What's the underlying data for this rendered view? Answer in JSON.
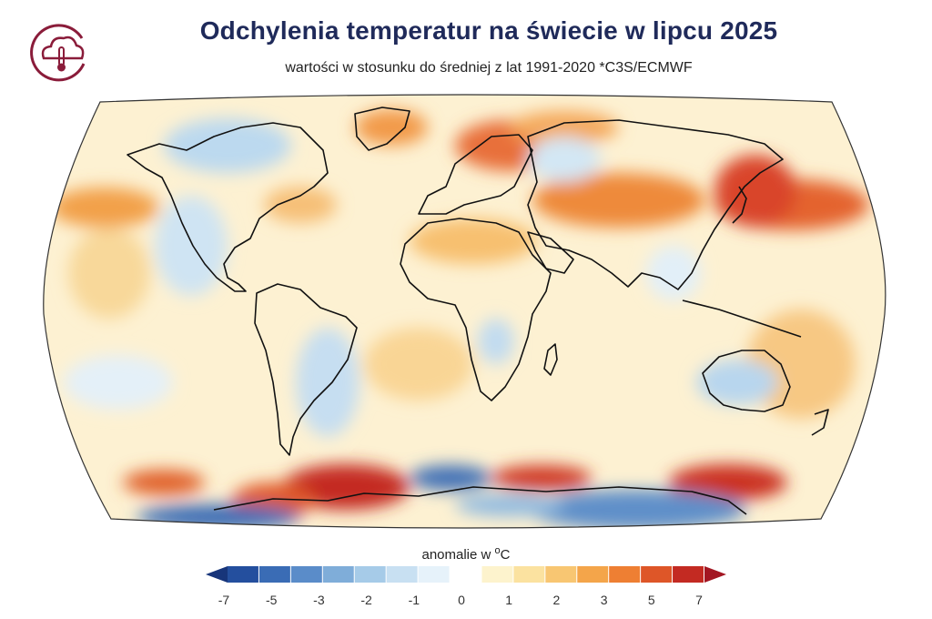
{
  "title": "Odchylenia temperatur na świecie w lipcu 2025",
  "subtitle": "wartości w stosunku do średniej z lat 1991-2020 *C3S/ECMWF",
  "logo": {
    "icon": "cloud-thermometer-icon",
    "color": "#8a1c3a"
  },
  "legend": {
    "title_prefix": "anomalie w ",
    "title_degree": "o",
    "title_unit": "C",
    "tick_labels": [
      "-7",
      "-5",
      "-3",
      "-2",
      "-1",
      "0",
      "1",
      "2",
      "3",
      "5",
      "7"
    ],
    "colors": [
      "#17357a",
      "#244f9e",
      "#3a6cb5",
      "#5a8cc9",
      "#7fadd9",
      "#a6cbe8",
      "#c8e0f2",
      "#e6f2fa",
      "#ffffff",
      "#fdf3cd",
      "#fbe2a0",
      "#f8c672",
      "#f4a54a",
      "#ee7f33",
      "#de5628",
      "#c32a22",
      "#a31622"
    ]
  },
  "map": {
    "projection": "Robinson",
    "ocean_base": "#fdf1d2",
    "outline_color": "#333333",
    "coastline_color": "#111111"
  }
}
